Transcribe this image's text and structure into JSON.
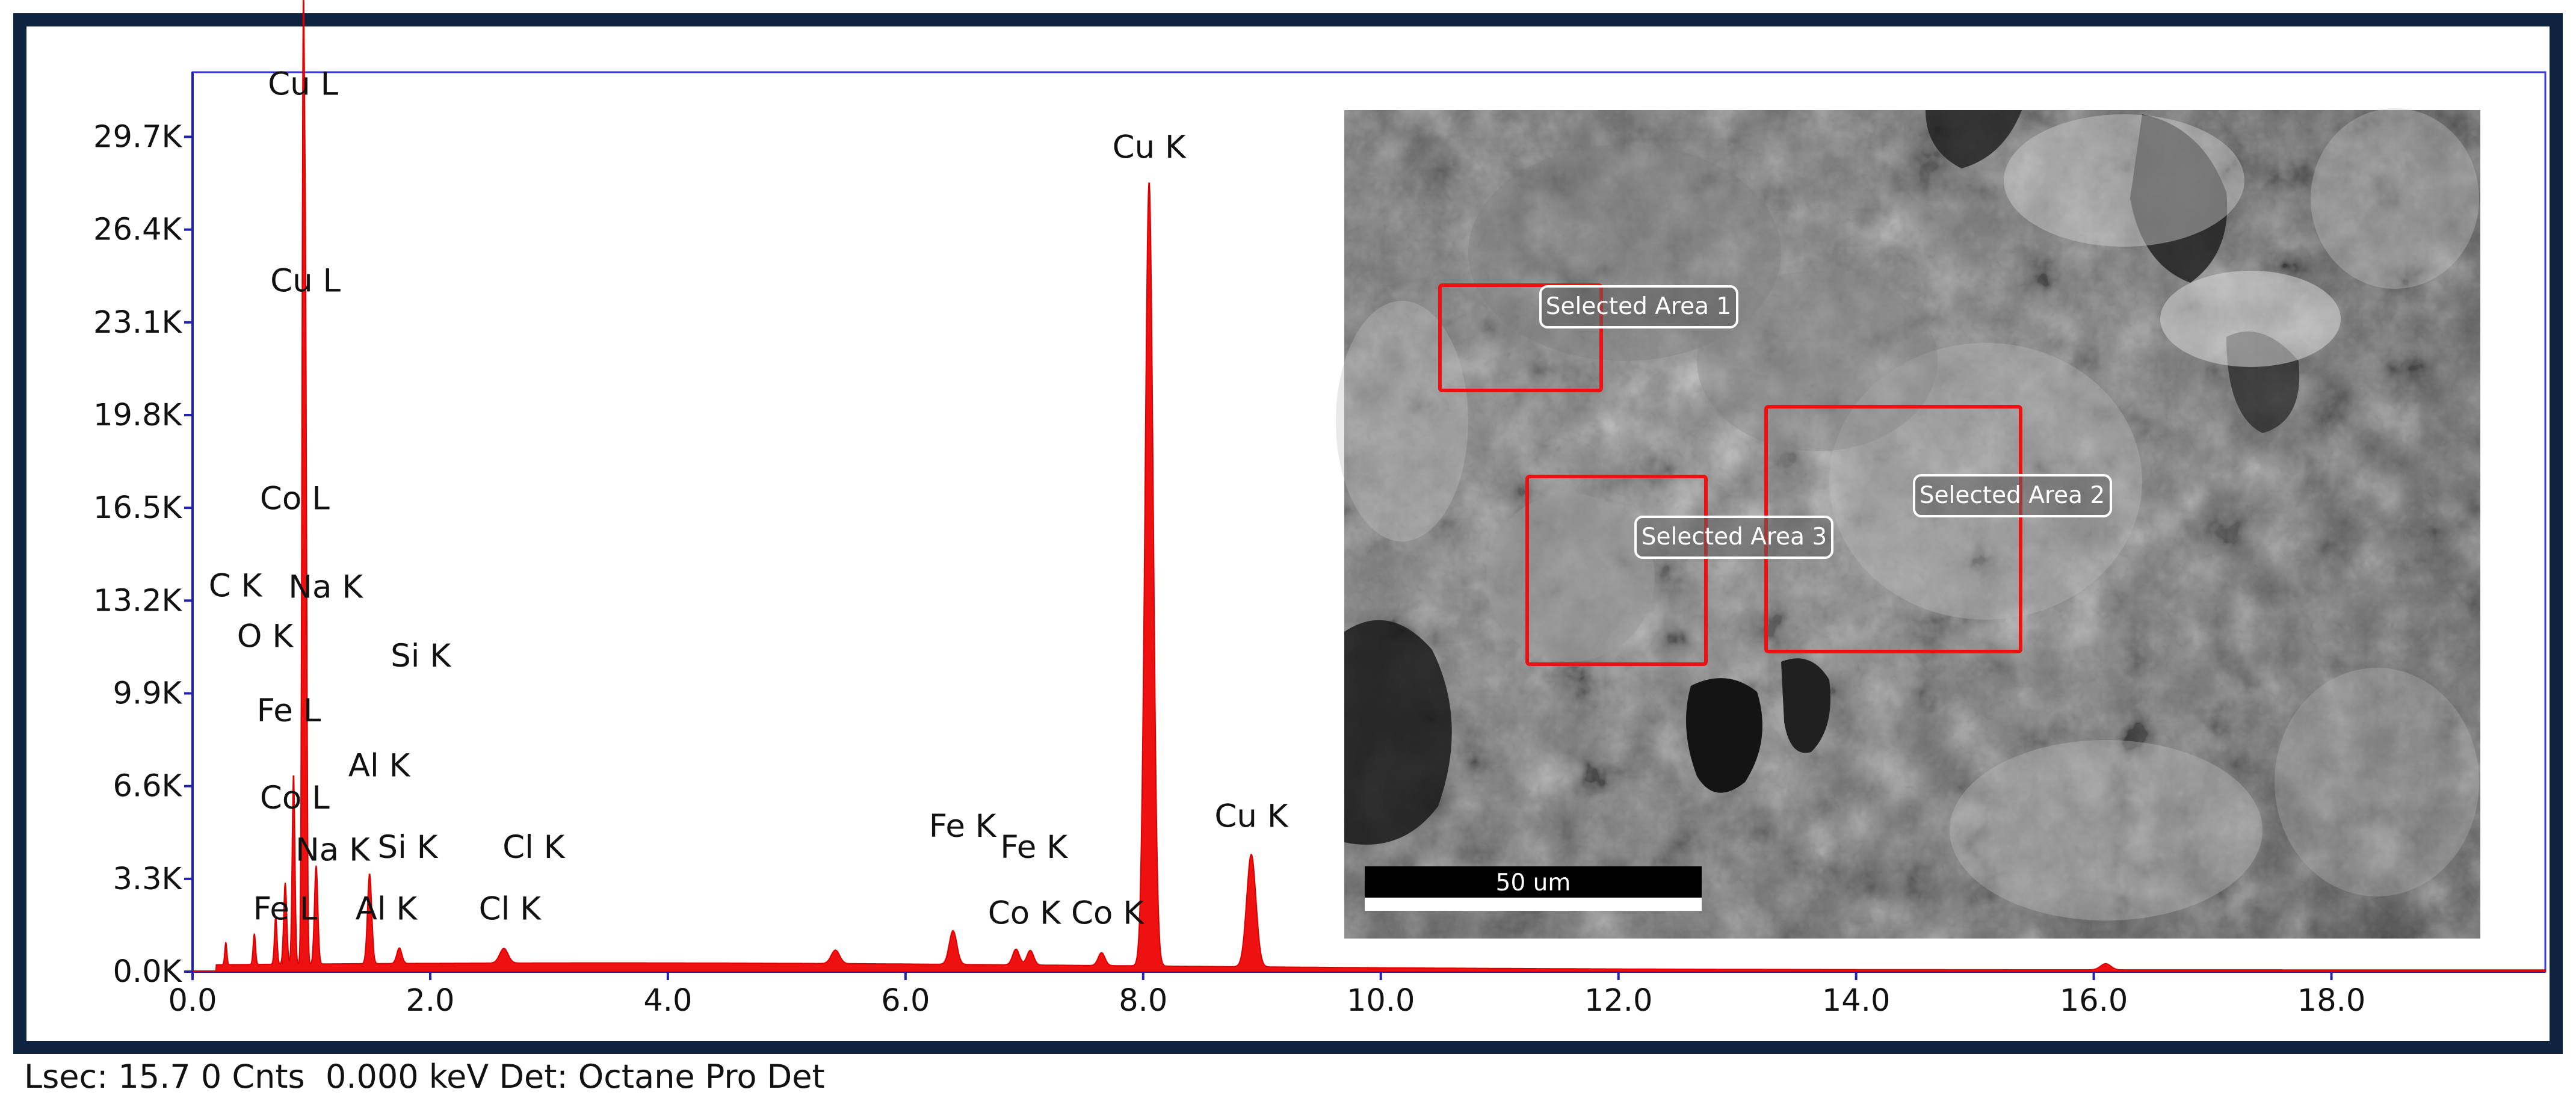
{
  "chart_data": {
    "type": "area",
    "xlim": [
      0,
      19.8
    ],
    "ylim": [
      0,
      32000
    ],
    "x_ticks": [
      "0.0",
      "2.0",
      "4.0",
      "6.0",
      "8.0",
      "10.0",
      "12.0",
      "14.0",
      "16.0",
      "18.0"
    ],
    "y_ticks": [
      "0.0K",
      "3.3K",
      "6.6K",
      "9.9K",
      "13.2K",
      "16.5K",
      "19.8K",
      "23.1K",
      "26.4K",
      "29.7K"
    ],
    "grid": false,
    "spectrum_color": "#ee1111",
    "peaks": [
      {
        "x": 0.28,
        "y": 800,
        "w": 0.012
      },
      {
        "x": 0.52,
        "y": 1100,
        "w": 0.014
      },
      {
        "x": 0.7,
        "y": 1700,
        "w": 0.015
      },
      {
        "x": 0.78,
        "y": 2900,
        "w": 0.018
      },
      {
        "x": 0.85,
        "y": 6800,
        "w": 0.016
      },
      {
        "x": 0.93,
        "y": 29800,
        "w": 0.014
      },
      {
        "x": 0.95,
        "y": 22500,
        "w": 0.015
      },
      {
        "x": 1.04,
        "y": 3500,
        "w": 0.02
      },
      {
        "x": 1.49,
        "y": 3200,
        "w": 0.025
      },
      {
        "x": 1.74,
        "y": 550,
        "w": 0.03
      },
      {
        "x": 2.62,
        "y": 520,
        "w": 0.05
      },
      {
        "x": 5.41,
        "y": 480,
        "w": 0.05
      },
      {
        "x": 6.4,
        "y": 1200,
        "w": 0.045
      },
      {
        "x": 6.93,
        "y": 560,
        "w": 0.04
      },
      {
        "x": 7.05,
        "y": 520,
        "w": 0.04
      },
      {
        "x": 7.65,
        "y": 460,
        "w": 0.04
      },
      {
        "x": 8.05,
        "y": 27900,
        "w": 0.048
      },
      {
        "x": 8.91,
        "y": 4000,
        "w": 0.055
      },
      {
        "x": 16.1,
        "y": 220,
        "w": 0.06
      }
    ],
    "peak_labels": [
      {
        "text": "Cu L",
        "x": 0.93,
        "y": 31200
      },
      {
        "text": "Cu L",
        "x": 0.95,
        "y": 24200
      },
      {
        "text": "Co L",
        "x": 0.86,
        "y": 16450
      },
      {
        "text": "C  K",
        "x": 0.36,
        "y": 13350
      },
      {
        "text": "Na K",
        "x": 1.12,
        "y": 13300
      },
      {
        "text": "O  K",
        "x": 0.61,
        "y": 11550
      },
      {
        "text": "Si K",
        "x": 1.92,
        "y": 10850
      },
      {
        "text": "Fe L",
        "x": 0.81,
        "y": 8900
      },
      {
        "text": "Al K",
        "x": 1.57,
        "y": 6950
      },
      {
        "text": "Co L",
        "x": 0.86,
        "y": 5800
      },
      {
        "text": "Na K",
        "x": 1.18,
        "y": 3950
      },
      {
        "text": "Si K",
        "x": 1.81,
        "y": 4050
      },
      {
        "text": "Cl K",
        "x": 2.87,
        "y": 4050
      },
      {
        "text": "Fe L",
        "x": 0.78,
        "y": 1850
      },
      {
        "text": "Al K",
        "x": 1.63,
        "y": 1850
      },
      {
        "text": "Cl K",
        "x": 2.67,
        "y": 1850
      },
      {
        "text": "Fe K",
        "x": 6.48,
        "y": 4800
      },
      {
        "text": "Fe K",
        "x": 7.08,
        "y": 4050
      },
      {
        "text": "Co K",
        "x": 7.0,
        "y": 1700
      },
      {
        "text": "Co K",
        "x": 7.7,
        "y": 1700
      },
      {
        "text": "Cu K",
        "x": 8.05,
        "y": 28950
      },
      {
        "text": "Cu K",
        "x": 8.91,
        "y": 5150
      }
    ]
  },
  "inset": {
    "selected_areas": [
      "Selected Area 1",
      "Selected Area 2",
      "Selected Area 3"
    ],
    "scale_bar_label": "50 um",
    "box_color": "#ee1111"
  },
  "status_line": "Lsec: 15.7 0 Cnts  0.000 keV Det: Octane Pro Det"
}
